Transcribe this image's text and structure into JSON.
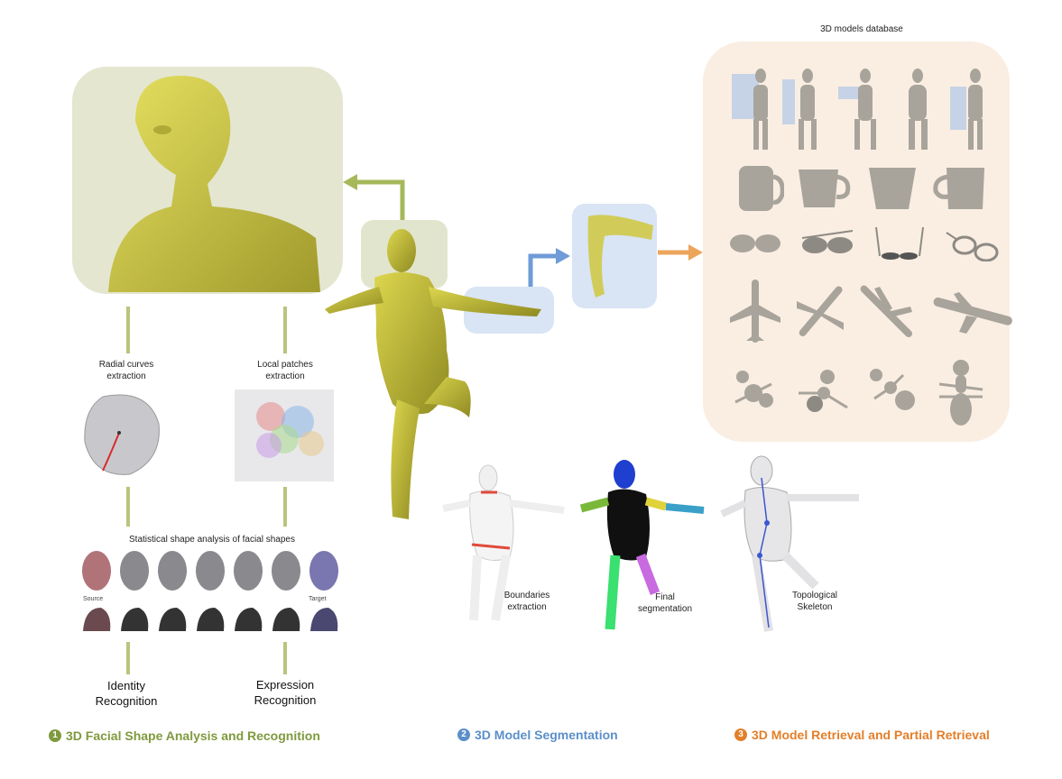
{
  "database": {
    "title": "3D models  database"
  },
  "face_steps": {
    "radial": [
      "Radial curves",
      "extraction"
    ],
    "patches": [
      "Local patches",
      "extraction"
    ],
    "statistical": "Statistical shape analysis of facial shapes",
    "source": "Source",
    "target": "Target",
    "identity": [
      "Identity",
      "Recognition"
    ],
    "expression": [
      "Expression",
      "Recognition"
    ]
  },
  "segmentation_steps": {
    "boundaries": [
      "Boundaries",
      "extraction"
    ],
    "final": [
      "Final",
      "segmentation"
    ],
    "skeleton": [
      "Topological",
      "Skeleton"
    ]
  },
  "sections": [
    {
      "number": "1",
      "label": "3D Facial Shape Analysis and Recognition",
      "color": "#7f9a3e"
    },
    {
      "number": "2",
      "label": "3D Model Segmentation",
      "color": "#5b8fc9"
    },
    {
      "number": "3",
      "label": "3D Model Retrieval and Partial Retrieval",
      "color": "#e37f2a"
    }
  ],
  "colors": {
    "green_line": "#b8c47c",
    "green_arrow": "#a6b85a",
    "blue_arrow": "#6f9bd8",
    "orange_arrow": "#eca55b",
    "figure": "#c9c43a",
    "db_model": "#a8a49c"
  },
  "icons": {
    "db_rows": [
      "human-models",
      "mug-models",
      "glasses-models",
      "airplane-models",
      "ant-models"
    ]
  }
}
